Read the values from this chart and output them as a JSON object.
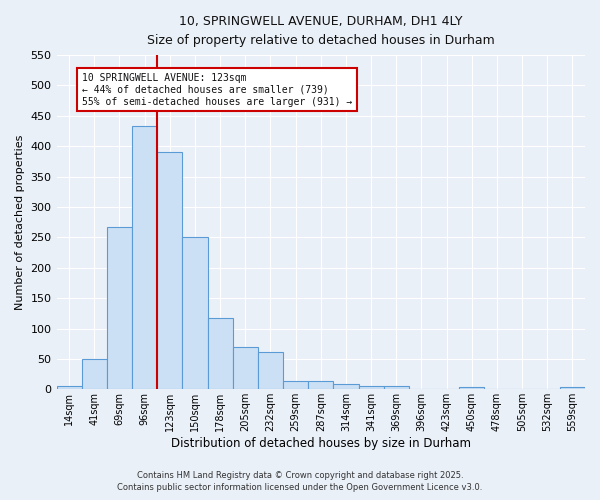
{
  "title_line1": "10, SPRINGWELL AVENUE, DURHAM, DH1 4LY",
  "title_line2": "Size of property relative to detached houses in Durham",
  "xlabel": "Distribution of detached houses by size in Durham",
  "ylabel": "Number of detached properties",
  "categories": [
    "14sqm",
    "41sqm",
    "69sqm",
    "96sqm",
    "123sqm",
    "150sqm",
    "178sqm",
    "205sqm",
    "232sqm",
    "259sqm",
    "287sqm",
    "314sqm",
    "341sqm",
    "369sqm",
    "396sqm",
    "423sqm",
    "450sqm",
    "478sqm",
    "505sqm",
    "532sqm",
    "559sqm"
  ],
  "values": [
    5,
    50,
    267,
    433,
    390,
    250,
    117,
    70,
    61,
    14,
    14,
    8,
    6,
    5,
    0,
    0,
    4,
    0,
    0,
    0,
    4
  ],
  "bar_color": "#cce0f5",
  "bar_edge_color": "#5b9bd5",
  "red_line_index": 4,
  "red_line_color": "#cc0000",
  "ylim": [
    0,
    550
  ],
  "yticks": [
    0,
    50,
    100,
    150,
    200,
    250,
    300,
    350,
    400,
    450,
    500,
    550
  ],
  "background_color": "#eaf0f8",
  "grid_color": "#ffffff",
  "annotation_text": "10 SPRINGWELL AVENUE: 123sqm\n← 44% of detached houses are smaller (739)\n55% of semi-detached houses are larger (931) →",
  "annotation_box_color": "#ffffff",
  "annotation_box_edge": "#cc0000",
  "footer_line1": "Contains HM Land Registry data © Crown copyright and database right 2025.",
  "footer_line2": "Contains public sector information licensed under the Open Government Licence v3.0."
}
